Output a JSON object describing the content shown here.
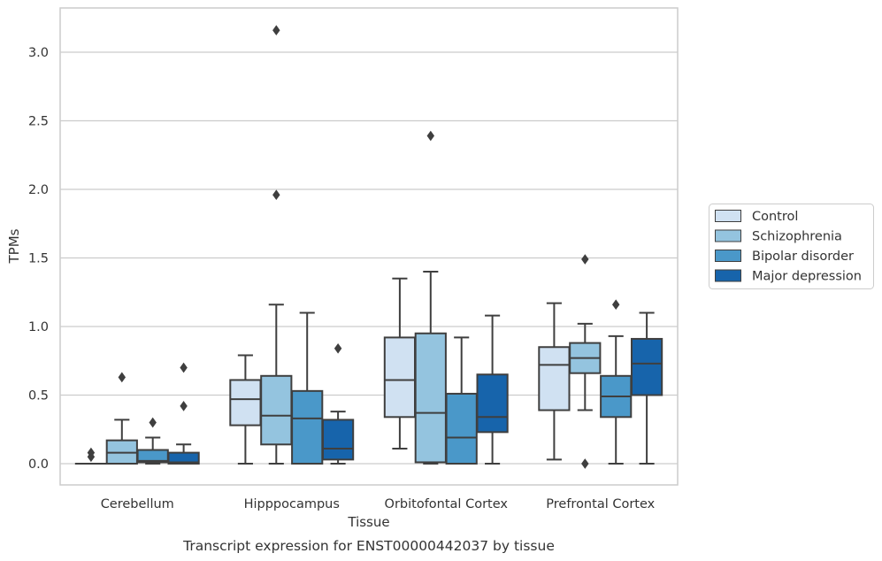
{
  "chart_data": {
    "type": "box",
    "xlabel": "Tissue",
    "ylabel": "TPMs",
    "caption": "Transcript expression for ENST00000442037 by tissue",
    "ylim": [
      -0.15,
      3.35
    ],
    "yticks": [
      0.0,
      0.5,
      1.0,
      1.5,
      2.0,
      2.5,
      3.0
    ],
    "ytick_labels": [
      "0.0",
      "0.5",
      "1.0",
      "1.5",
      "2.0",
      "2.5",
      "3.0"
    ],
    "grid": "horizontal",
    "legend_position": "right",
    "categories": [
      "Cerebellum",
      "Hipppocampus",
      "Orbitofontal Cortex",
      "Prefrontal Cortex"
    ],
    "series": [
      {
        "name": "Control",
        "color": "#d0e1f2",
        "boxes": [
          {
            "whislo": 0.0,
            "q1": 0.0,
            "med": 0.0,
            "q3": 0.0,
            "whishi": 0.0,
            "fliers": [
              0.05,
              0.08
            ]
          },
          {
            "whislo": 0.0,
            "q1": 0.28,
            "med": 0.47,
            "q3": 0.61,
            "whishi": 0.79,
            "fliers": []
          },
          {
            "whislo": 0.11,
            "q1": 0.34,
            "med": 0.61,
            "q3": 0.92,
            "whishi": 1.35,
            "fliers": []
          },
          {
            "whislo": 0.03,
            "q1": 0.39,
            "med": 0.72,
            "q3": 0.85,
            "whishi": 1.17,
            "fliers": []
          }
        ]
      },
      {
        "name": "Schizophrenia",
        "color": "#94c4df",
        "boxes": [
          {
            "whislo": 0.0,
            "q1": 0.0,
            "med": 0.08,
            "q3": 0.17,
            "whishi": 0.32,
            "fliers": [
              0.63
            ]
          },
          {
            "whislo": 0.0,
            "q1": 0.14,
            "med": 0.35,
            "q3": 0.64,
            "whishi": 1.16,
            "fliers": [
              1.96,
              3.16
            ]
          },
          {
            "whislo": 0.0,
            "q1": 0.01,
            "med": 0.37,
            "q3": 0.95,
            "whishi": 1.4,
            "fliers": [
              2.39
            ]
          },
          {
            "whislo": 0.39,
            "q1": 0.66,
            "med": 0.77,
            "q3": 0.88,
            "whishi": 1.02,
            "fliers": [
              1.49,
              0.0
            ]
          }
        ]
      },
      {
        "name": "Bipolar disorder",
        "color": "#4a98c9",
        "boxes": [
          {
            "whislo": 0.0,
            "q1": 0.01,
            "med": 0.02,
            "q3": 0.1,
            "whishi": 0.19,
            "fliers": [
              0.3
            ]
          },
          {
            "whislo": 0.0,
            "q1": 0.0,
            "med": 0.33,
            "q3": 0.53,
            "whishi": 1.1,
            "fliers": []
          },
          {
            "whislo": 0.0,
            "q1": 0.0,
            "med": 0.19,
            "q3": 0.51,
            "whishi": 0.92,
            "fliers": []
          },
          {
            "whislo": 0.0,
            "q1": 0.34,
            "med": 0.49,
            "q3": 0.64,
            "whishi": 0.93,
            "fliers": [
              1.16
            ]
          }
        ]
      },
      {
        "name": "Major depression",
        "color": "#1764ab",
        "boxes": [
          {
            "whislo": 0.0,
            "q1": 0.0,
            "med": 0.01,
            "q3": 0.08,
            "whishi": 0.14,
            "fliers": [
              0.42,
              0.7
            ]
          },
          {
            "whislo": 0.0,
            "q1": 0.03,
            "med": 0.11,
            "q3": 0.32,
            "whishi": 0.38,
            "fliers": [
              0.84
            ]
          },
          {
            "whislo": 0.0,
            "q1": 0.23,
            "med": 0.34,
            "q3": 0.65,
            "whishi": 1.08,
            "fliers": []
          },
          {
            "whislo": 0.0,
            "q1": 0.5,
            "med": 0.73,
            "q3": 0.91,
            "whishi": 1.1,
            "fliers": []
          }
        ]
      }
    ]
  }
}
